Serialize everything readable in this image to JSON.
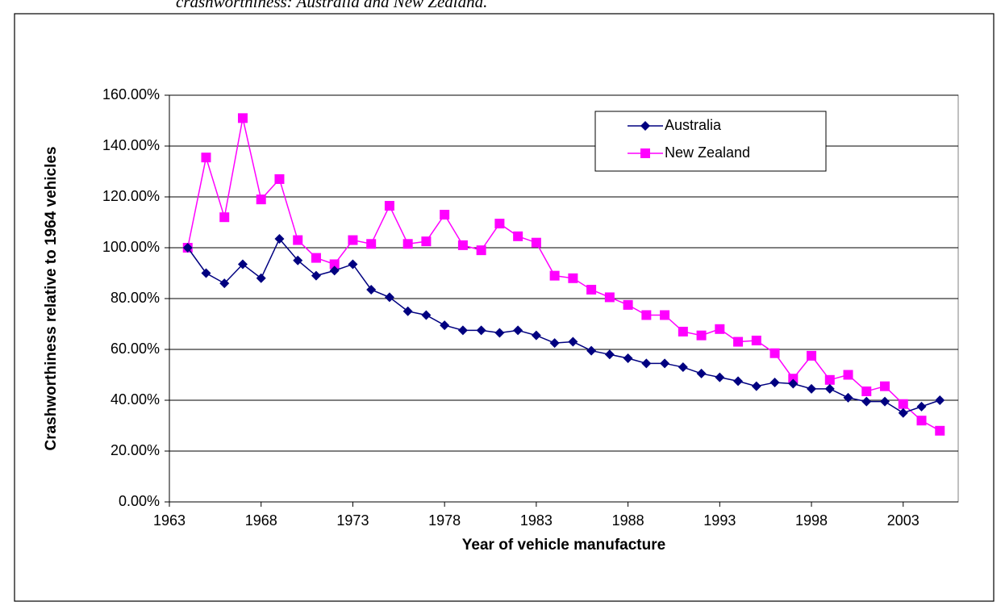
{
  "caption": "crashworthiness: Australia and New Zealand.",
  "chart_data": {
    "type": "line",
    "x_label": "Year of vehicle manufacture",
    "y_label": "Crashworthiness relative to 1964 vehicles",
    "x": [
      1964,
      1965,
      1966,
      1967,
      1968,
      1969,
      1970,
      1971,
      1972,
      1973,
      1974,
      1975,
      1976,
      1977,
      1978,
      1979,
      1980,
      1981,
      1982,
      1983,
      1984,
      1985,
      1986,
      1987,
      1988,
      1989,
      1990,
      1991,
      1992,
      1993,
      1994,
      1995,
      1996,
      1997,
      1998,
      1999,
      2000,
      2001,
      2002,
      2003,
      2004,
      2005
    ],
    "series": [
      {
        "name": "Australia",
        "color": "#000080",
        "marker": "diamond",
        "values": [
          100,
          90,
          86,
          93.5,
          88,
          103.5,
          95,
          89,
          91,
          93.5,
          83.5,
          80.5,
          75,
          73.5,
          69.5,
          67.5,
          67.5,
          66.5,
          67.5,
          65.5,
          62.5,
          63,
          59.5,
          58,
          56.5,
          54.5,
          54.5,
          53,
          50.5,
          49,
          47.5,
          45.5,
          47,
          46.5,
          44.5,
          44.5,
          41,
          39.5,
          39.5,
          35,
          37.5,
          40
        ]
      },
      {
        "name": "New Zealand",
        "color": "#ff00ff",
        "marker": "square",
        "values": [
          100,
          135.5,
          112,
          151,
          119,
          127,
          103,
          96,
          93.5,
          103,
          101.5,
          116.5,
          101.5,
          102.5,
          113,
          101,
          99,
          109.5,
          104.5,
          102,
          89,
          88,
          83.5,
          80.5,
          77.5,
          73.5,
          73.5,
          67,
          65.5,
          68,
          63,
          63.5,
          58.5,
          48.5,
          57.5,
          48,
          50,
          43.5,
          45.5,
          38.5,
          32,
          28
        ]
      }
    ],
    "xlim": [
      1963,
      2006
    ],
    "xticks": [
      1963,
      1968,
      1973,
      1978,
      1983,
      1988,
      1993,
      1998,
      2003
    ],
    "ylim": [
      0,
      160
    ],
    "yticks": [
      {
        "value": 0,
        "label": "0.00%"
      },
      {
        "value": 20,
        "label": "20.00%"
      },
      {
        "value": 40,
        "label": "40.00%"
      },
      {
        "value": 60,
        "label": "60.00%"
      },
      {
        "value": 80,
        "label": "80.00%"
      },
      {
        "value": 100,
        "label": "100.00%"
      },
      {
        "value": 120,
        "label": "120.00%"
      },
      {
        "value": 140,
        "label": "140.00%"
      },
      {
        "value": 160,
        "label": "160.00%"
      }
    ],
    "grid": true,
    "legend": "upper right"
  }
}
